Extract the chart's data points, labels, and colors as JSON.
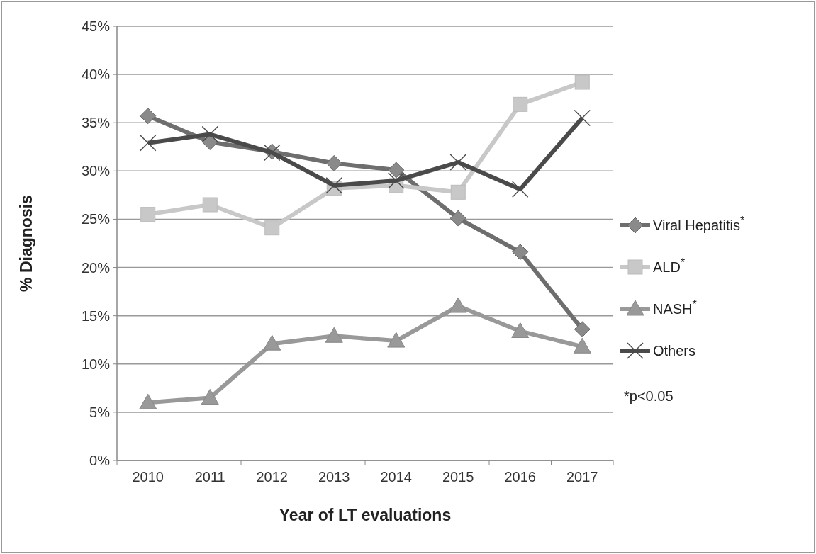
{
  "chart_data": {
    "type": "line",
    "xlabel": "Year of LT evaluations",
    "ylabel": "% Diagnosis",
    "categories": [
      "2010",
      "2011",
      "2012",
      "2013",
      "2014",
      "2015",
      "2016",
      "2017"
    ],
    "series": [
      {
        "name": "Viral Hepatitis$^{*}$",
        "color": "#6e6e6e",
        "marker": "diamond",
        "values": [
          35.7,
          33.0,
          32.0,
          30.8,
          30.1,
          25.1,
          21.6,
          13.6
        ]
      },
      {
        "name": "ALD$^{*}$",
        "color": "#c8c8c8",
        "marker": "square",
        "values": [
          25.5,
          26.5,
          24.1,
          28.2,
          28.5,
          27.8,
          36.9,
          39.2
        ]
      },
      {
        "name": "NASH$^{*}$",
        "color": "#999999",
        "marker": "triangle",
        "values": [
          6.0,
          6.5,
          12.1,
          12.9,
          12.4,
          16.0,
          13.4,
          11.8
        ]
      },
      {
        "name": "Others",
        "color": "#4a4a4a",
        "marker": "cross",
        "values": [
          32.9,
          33.8,
          31.9,
          28.5,
          29.0,
          30.9,
          28.1,
          35.5
        ]
      }
    ],
    "ylim": [
      0,
      45
    ],
    "yticks": [
      {
        "value": 0,
        "label": "0%"
      },
      {
        "value": 5,
        "label": "5%"
      },
      {
        "value": 10,
        "label": "10%"
      },
      {
        "value": 15,
        "label": "15%"
      },
      {
        "value": 20,
        "label": "20%"
      },
      {
        "value": 25,
        "label": "25%"
      },
      {
        "value": 30,
        "label": "30%"
      },
      {
        "value": 35,
        "label": "35%"
      },
      {
        "value": 40,
        "label": "40%"
      },
      {
        "value": 45,
        "label": "45%"
      }
    ],
    "grid": "y",
    "legend": "right",
    "line_style": "solid",
    "annotations": [
      "*p<0.05"
    ]
  }
}
